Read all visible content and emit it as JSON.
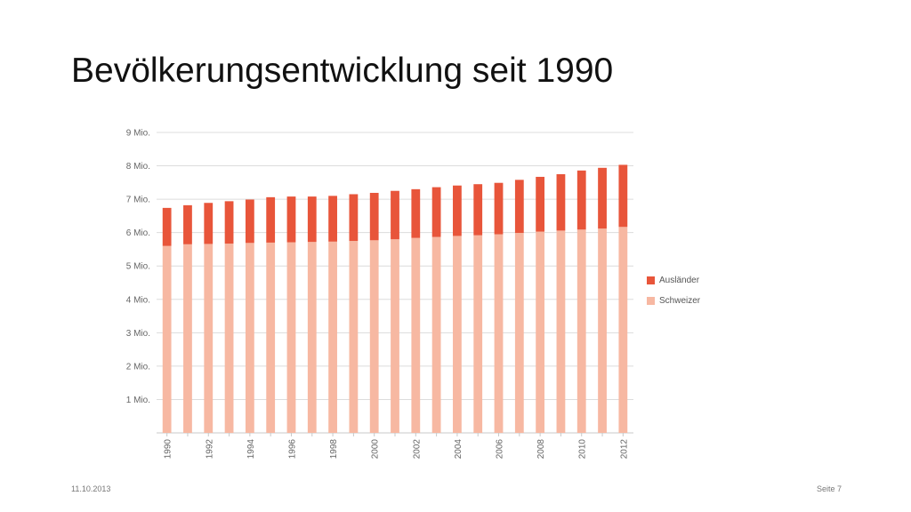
{
  "slide": {
    "title": "Bevölkerungsentwicklung seit 1990",
    "date": "11.10.2013",
    "page": "Seite 7"
  },
  "chart_data": {
    "type": "bar",
    "stacked": true,
    "title": "",
    "xlabel": "",
    "ylabel": "",
    "ylim": [
      0,
      9
    ],
    "y_ticks": [
      1,
      2,
      3,
      4,
      5,
      6,
      7,
      8,
      9
    ],
    "y_tick_labels": [
      "1 Mio.",
      "2 Mio.",
      "3 Mio.",
      "4 Mio.",
      "5 Mio.",
      "6 Mio.",
      "7 Mio.",
      "8 Mio.",
      "9 Mio."
    ],
    "grid": true,
    "legend_position": "right",
    "categories": [
      "1990",
      "1991",
      "1992",
      "1993",
      "1994",
      "1995",
      "1996",
      "1997",
      "1998",
      "1999",
      "2000",
      "2001",
      "2002",
      "2003",
      "2004",
      "2005",
      "2006",
      "2007",
      "2008",
      "2009",
      "2010",
      "2011",
      "2012"
    ],
    "x_tick_labels": [
      "1990",
      "",
      "1992",
      "",
      "1994",
      "",
      "1996",
      "",
      "1998",
      "",
      "2000",
      "",
      "2002",
      "",
      "2004",
      "",
      "2006",
      "",
      "2008",
      "",
      "2010",
      "",
      "2012"
    ],
    "series": [
      {
        "name": "Schweizer",
        "color": "#f7b8a2",
        "values": [
          5.6,
          5.65,
          5.66,
          5.67,
          5.69,
          5.7,
          5.71,
          5.72,
          5.73,
          5.75,
          5.77,
          5.8,
          5.84,
          5.87,
          5.9,
          5.92,
          5.95,
          5.99,
          6.03,
          6.06,
          6.09,
          6.12,
          6.17
        ]
      },
      {
        "name": "Ausländer",
        "color": "#e8553a",
        "values": [
          1.14,
          1.17,
          1.23,
          1.27,
          1.3,
          1.36,
          1.37,
          1.36,
          1.37,
          1.4,
          1.42,
          1.45,
          1.46,
          1.49,
          1.51,
          1.53,
          1.54,
          1.59,
          1.64,
          1.69,
          1.77,
          1.82,
          1.86
        ]
      }
    ]
  }
}
